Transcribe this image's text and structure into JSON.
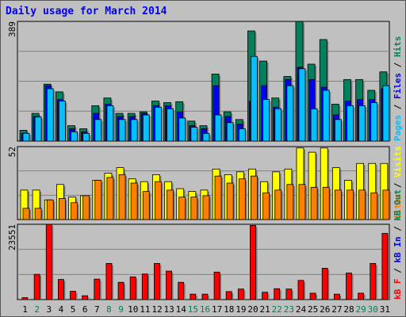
{
  "title": "Daily usage for March 2014",
  "colors": {
    "background": "#c0c0c0",
    "title": "#0000ff",
    "hits": "#00805c",
    "files": "#0000ff",
    "pages": "#00c0ff",
    "visits": "#ffff00",
    "sites": "#ff8000",
    "kbf": "#ff0000",
    "kbin": "#0000ff",
    "kbout": "#00805c",
    "day_weekday": "#000000",
    "day_weekend": "#00805c"
  },
  "chart_data": [
    {
      "type": "bar",
      "panel": "top",
      "ymax_label": "389",
      "ylim": [
        0,
        389
      ],
      "categories": [
        "1",
        "2",
        "3",
        "4",
        "5",
        "6",
        "7",
        "8",
        "9",
        "10",
        "11",
        "12",
        "13",
        "14",
        "15",
        "16",
        "17",
        "18",
        "19",
        "20",
        "21",
        "22",
        "23",
        "24",
        "25",
        "26",
        "27",
        "28",
        "29",
        "30",
        "31"
      ],
      "legend": [
        {
          "label": "Pages",
          "color": "#00c0ff"
        },
        {
          "label": "/",
          "color": "#000000"
        },
        {
          "label": "Files",
          "color": "#0000ff"
        },
        {
          "label": "/",
          "color": "#000000"
        },
        {
          "label": "Hits",
          "color": "#00805c"
        }
      ],
      "series": [
        {
          "name": "Hits",
          "values": [
            35,
            90,
            185,
            160,
            50,
            40,
            115,
            140,
            90,
            90,
            95,
            130,
            125,
            128,
            65,
            50,
            218,
            95,
            70,
            358,
            260,
            140,
            210,
            389,
            250,
            330,
            120,
            200,
            200,
            165,
            225
          ]
        },
        {
          "name": "Files",
          "values": [
            25,
            80,
            180,
            135,
            40,
            30,
            90,
            120,
            80,
            80,
            90,
            115,
            115,
            95,
            50,
            40,
            180,
            80,
            55,
            130,
            180,
            110,
            200,
            240,
            200,
            175,
            85,
            130,
            135,
            135,
            170
          ]
        },
        {
          "name": "Pages",
          "values": [
            25,
            78,
            170,
            130,
            30,
            25,
            70,
            115,
            70,
            70,
            85,
            110,
            105,
            75,
            45,
            25,
            85,
            60,
            40,
            275,
            135,
            105,
            180,
            235,
            105,
            165,
            70,
            115,
            115,
            125,
            180
          ]
        }
      ]
    },
    {
      "type": "bar",
      "panel": "middle",
      "ymax_label": "52",
      "ylim": [
        0,
        52
      ],
      "categories": [
        "1",
        "2",
        "3",
        "4",
        "5",
        "6",
        "7",
        "8",
        "9",
        "10",
        "11",
        "12",
        "13",
        "14",
        "15",
        "16",
        "17",
        "18",
        "19",
        "20",
        "21",
        "22",
        "23",
        "24",
        "25",
        "26",
        "27",
        "28",
        "29",
        "30",
        "31"
      ],
      "legend": [
        {
          "label": "Sites",
          "color": "#ff8000"
        },
        {
          "label": "/",
          "color": "#000000"
        },
        {
          "label": "Visits",
          "color": "#ffff00"
        }
      ],
      "series": [
        {
          "name": "Visits",
          "values": [
            21,
            21,
            14,
            25,
            16,
            17,
            28,
            33,
            37,
            29,
            27,
            32,
            27,
            22,
            20,
            21,
            36,
            32,
            34,
            36,
            27,
            34,
            36,
            51,
            48,
            51,
            37,
            28,
            40,
            40,
            40
          ]
        },
        {
          "name": "Sites",
          "values": [
            8,
            8,
            14,
            15,
            12,
            17,
            28,
            30,
            32,
            26,
            20,
            27,
            21,
            16,
            16,
            17,
            31,
            26,
            29,
            31,
            19,
            21,
            25,
            25,
            23,
            23,
            21,
            21,
            21,
            19,
            21
          ]
        }
      ]
    },
    {
      "type": "bar",
      "panel": "bottom",
      "ymax_label": "23551",
      "ylim": [
        0,
        23551
      ],
      "categories": [
        "1",
        "2",
        "3",
        "4",
        "5",
        "6",
        "7",
        "8",
        "9",
        "10",
        "11",
        "12",
        "13",
        "14",
        "15",
        "16",
        "17",
        "18",
        "19",
        "20",
        "21",
        "22",
        "23",
        "24",
        "25",
        "26",
        "27",
        "28",
        "29",
        "30",
        "31"
      ],
      "legend": [
        {
          "label": "kB F",
          "color": "#ff0000"
        },
        {
          "label": "/",
          "color": "#000000"
        },
        {
          "label": "kB In",
          "color": "#0000ff"
        },
        {
          "label": "/",
          "color": "#000000"
        },
        {
          "label": "kB Out",
          "color": "#00805c"
        }
      ],
      "series": [
        {
          "name": "kB F",
          "values": [
            600,
            7900,
            23551,
            6300,
            2600,
            1200,
            6400,
            11300,
            5400,
            7100,
            8000,
            11300,
            8900,
            5400,
            1700,
            1700,
            8600,
            2500,
            3300,
            23200,
            2300,
            3400,
            3300,
            6000,
            2000,
            9800,
            1700,
            8300,
            2000,
            11300,
            20700
          ]
        }
      ]
    }
  ],
  "days": [
    {
      "label": "1",
      "weekend": false
    },
    {
      "label": "2",
      "weekend": true
    },
    {
      "label": "3",
      "weekend": false
    },
    {
      "label": "4",
      "weekend": false
    },
    {
      "label": "5",
      "weekend": false
    },
    {
      "label": "6",
      "weekend": false
    },
    {
      "label": "7",
      "weekend": false
    },
    {
      "label": "8",
      "weekend": true
    },
    {
      "label": "9",
      "weekend": true
    },
    {
      "label": "10",
      "weekend": false
    },
    {
      "label": "11",
      "weekend": false
    },
    {
      "label": "12",
      "weekend": false
    },
    {
      "label": "13",
      "weekend": false
    },
    {
      "label": "14",
      "weekend": false
    },
    {
      "label": "15",
      "weekend": true
    },
    {
      "label": "16",
      "weekend": true
    },
    {
      "label": "17",
      "weekend": false
    },
    {
      "label": "18",
      "weekend": false
    },
    {
      "label": "19",
      "weekend": false
    },
    {
      "label": "20",
      "weekend": false
    },
    {
      "label": "21",
      "weekend": false
    },
    {
      "label": "22",
      "weekend": true
    },
    {
      "label": "23",
      "weekend": true
    },
    {
      "label": "24",
      "weekend": false
    },
    {
      "label": "25",
      "weekend": false
    },
    {
      "label": "26",
      "weekend": false
    },
    {
      "label": "27",
      "weekend": false
    },
    {
      "label": "28",
      "weekend": false
    },
    {
      "label": "29",
      "weekend": true
    },
    {
      "label": "30",
      "weekend": true
    },
    {
      "label": "31",
      "weekend": false
    }
  ]
}
